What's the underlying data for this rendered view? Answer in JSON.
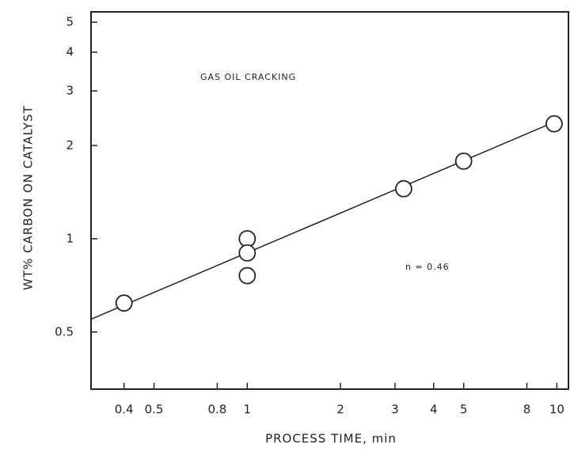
{
  "chart_data": {
    "type": "scatter",
    "x_label": "PROCESS TIME, min",
    "y_label": "WT% CARBON ON CATALYST",
    "annotations": [
      "GAS OIL CRACKING",
      "n = 0.46"
    ],
    "log_x": true,
    "log_y": true,
    "xlim": [
      0.313,
      10.9
    ],
    "ylim": [
      0.327,
      5.4
    ],
    "xticks": [
      0.4,
      0.5,
      0.8,
      1,
      2,
      3,
      4,
      5,
      8,
      10
    ],
    "yticks": [
      0.5,
      1,
      2,
      3,
      4,
      5
    ],
    "color": "#222222",
    "x": [
      0.4,
      1,
      1,
      1,
      3.2,
      5,
      9.8
    ],
    "values": [
      0.62,
      1.0,
      0.9,
      0.76,
      1.45,
      1.78,
      2.35
    ],
    "fit_line": {
      "x": [
        0.313,
        10
      ],
      "y": [
        0.55,
        2.4
      ]
    }
  }
}
